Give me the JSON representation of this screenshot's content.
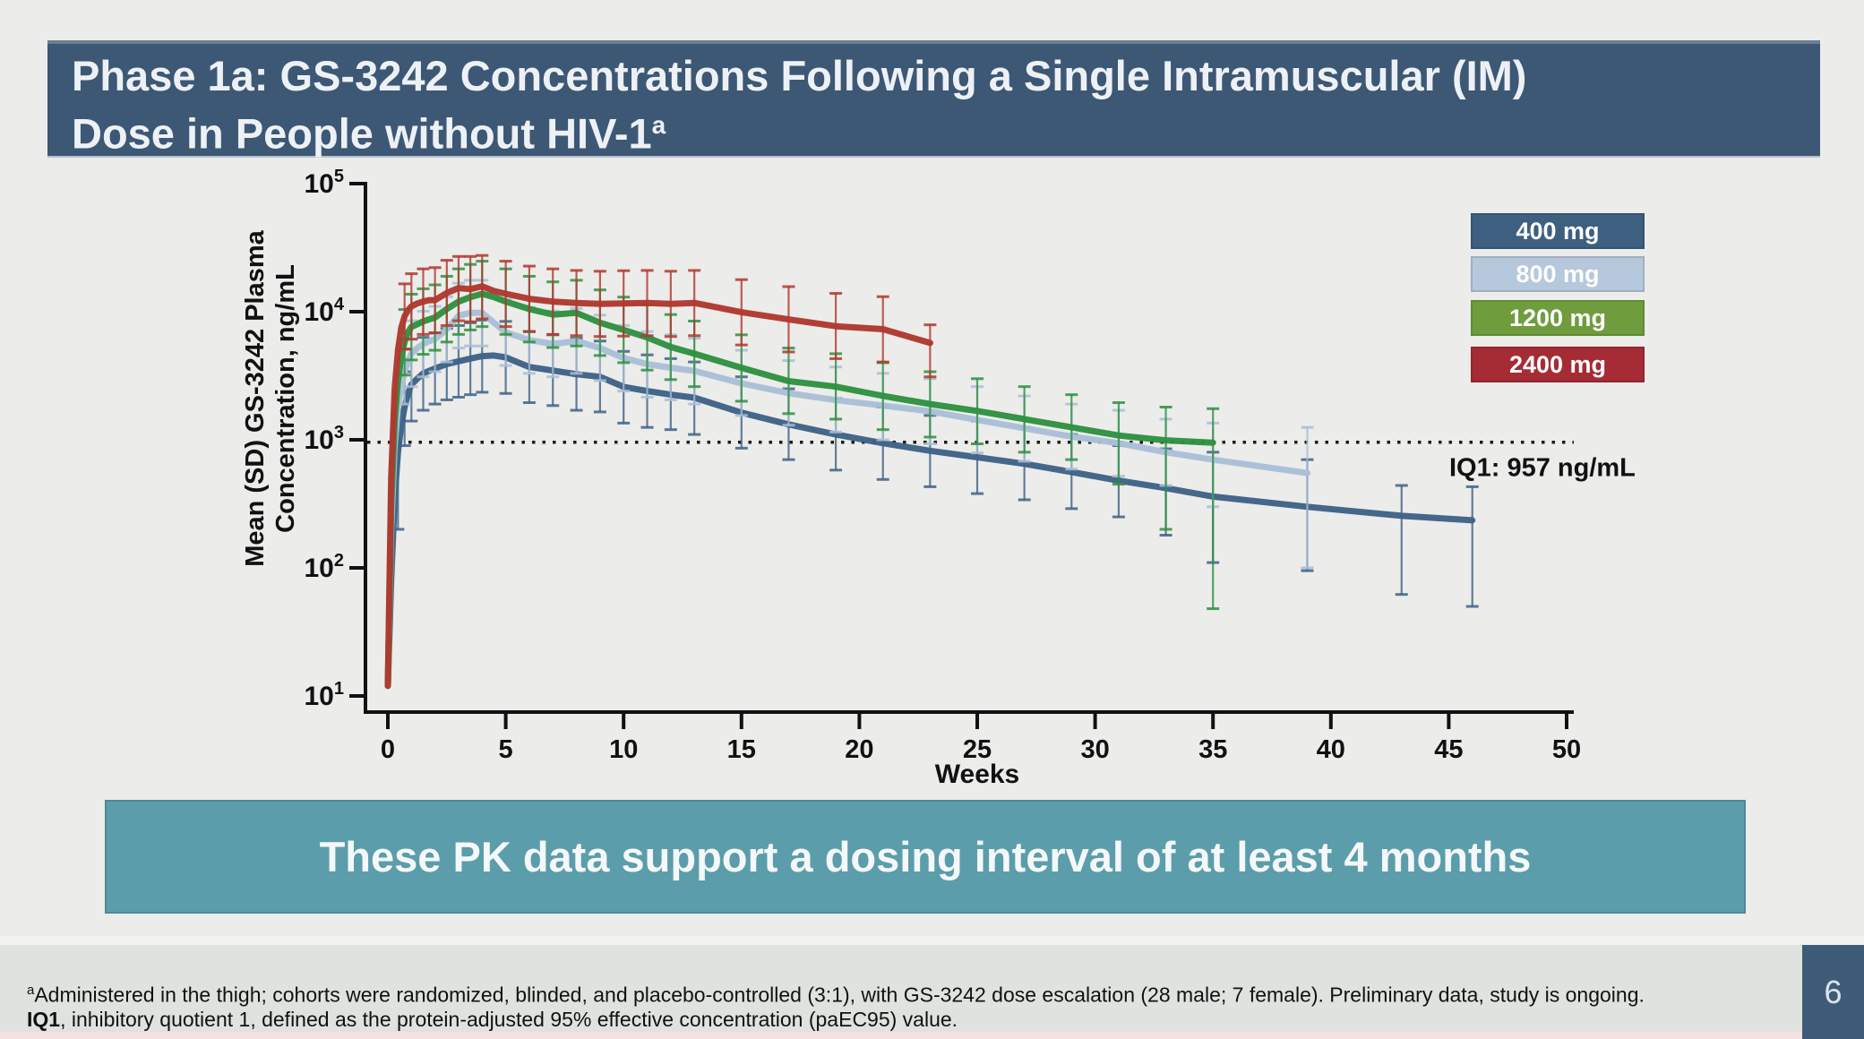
{
  "slide": {
    "title_line1": "Phase 1a: GS-3242 Concentrations Following a Single Intramuscular (IM)",
    "title_line2": "Dose in People without HIV-1",
    "title_superscript": "a",
    "banner_text": "These PK data support a dosing interval of at least 4 months",
    "page_number": "6",
    "footnote_sup": "a",
    "footnote_line1": "Administered in the thigh; cohorts were randomized, blinded, and placebo-controlled (3:1), with GS-3242 dose escalation (28 male; 7 female). Preliminary data, study is ongoing.",
    "footnote_line2_bold": "IQ1",
    "footnote_line2_rest": ", inhibitory quotient 1, defined as the protein-adjusted 95% effective concentration (paEC95) value."
  },
  "colors": {
    "slide_bg": "#ececea",
    "title_bar_bg": "#3d5875",
    "banner_bg": "#5b9dab",
    "footer_bg": "#dfe3df",
    "bottom_strip": "#f5e1e1",
    "page_box_bg": "#3e5c7a",
    "axis": "#111111"
  },
  "chart_data": {
    "type": "line",
    "x_axis_title": "Weeks",
    "y_axis_title_lines": [
      "Mean (SD) GS-3242 Plasma",
      "Concentration, ng/mL"
    ],
    "x_ticks": [
      0,
      5,
      10,
      15,
      20,
      25,
      30,
      35,
      40,
      45,
      50
    ],
    "y_tick_exponents": [
      5,
      4,
      3,
      2,
      1
    ],
    "xlim": [
      0,
      50
    ],
    "ylog_range": [
      1,
      5
    ],
    "grid": false,
    "legend_position": "upper-right",
    "reference_line": {
      "value": 957,
      "label": "IQ1: 957 ng/mL"
    },
    "series": [
      {
        "name": "400 mg",
        "line_color": "#3f6286",
        "legend_color": "#3d5f80",
        "points": [
          [
            0,
            12
          ],
          [
            0.14,
            80
          ],
          [
            0.29,
            350
          ],
          [
            0.43,
            800
          ],
          [
            0.57,
            1300
          ],
          [
            0.71,
            1800
          ],
          [
            0.86,
            2300
          ],
          [
            1,
            2700
          ],
          [
            1.25,
            3000
          ],
          [
            1.5,
            3300
          ],
          [
            1.75,
            3450
          ],
          [
            2,
            3600
          ],
          [
            2.5,
            3900
          ],
          [
            3,
            4100
          ],
          [
            3.5,
            4300
          ],
          [
            4,
            4500
          ],
          [
            4.5,
            4550
          ],
          [
            5,
            4400
          ],
          [
            6,
            3700
          ],
          [
            7,
            3470
          ],
          [
            8,
            3250
          ],
          [
            9,
            3100
          ],
          [
            10,
            2590
          ],
          [
            11,
            2400
          ],
          [
            12,
            2250
          ],
          [
            13,
            2130
          ],
          [
            15,
            1630
          ],
          [
            17,
            1320
          ],
          [
            19,
            1100
          ],
          [
            21,
            940
          ],
          [
            23,
            820
          ],
          [
            25,
            730
          ],
          [
            27,
            650
          ],
          [
            29,
            560
          ],
          [
            31,
            480
          ],
          [
            33,
            420
          ],
          [
            35,
            360
          ],
          [
            39,
            300
          ],
          [
            43,
            255
          ],
          [
            46,
            235
          ]
        ],
        "err": [
          [
            0.43,
            200,
            1700
          ],
          [
            0.71,
            900,
            3400
          ],
          [
            1,
            1400,
            5100
          ],
          [
            1.5,
            1700,
            6300
          ],
          [
            2,
            1900,
            6800
          ],
          [
            2.5,
            2050,
            7400
          ],
          [
            3,
            2150,
            7800
          ],
          [
            3.5,
            2250,
            8200
          ],
          [
            4,
            2350,
            8600
          ],
          [
            5,
            2300,
            8400
          ],
          [
            6,
            1950,
            7000
          ],
          [
            7,
            1850,
            6600
          ],
          [
            8,
            1700,
            6200
          ],
          [
            9,
            1650,
            5900
          ],
          [
            10,
            1350,
            4900
          ],
          [
            11,
            1250,
            4600
          ],
          [
            12,
            1200,
            4300
          ],
          [
            13,
            1100,
            4050
          ],
          [
            15,
            860,
            3100
          ],
          [
            17,
            700,
            2500
          ],
          [
            19,
            580,
            2100
          ],
          [
            21,
            490,
            1800
          ],
          [
            23,
            430,
            1550
          ],
          [
            25,
            380,
            1400
          ],
          [
            27,
            340,
            1250
          ],
          [
            29,
            290,
            1100
          ],
          [
            31,
            250,
            900
          ],
          [
            33,
            180,
            850
          ],
          [
            35,
            110,
            800
          ],
          [
            39,
            95,
            700
          ],
          [
            43,
            62,
            440
          ],
          [
            46,
            50,
            430
          ]
        ]
      },
      {
        "name": "800 mg",
        "line_color": "#a9bfd7",
        "legend_color": "#b6c8db",
        "points": [
          [
            0,
            12
          ],
          [
            0.14,
            200
          ],
          [
            0.29,
            900
          ],
          [
            0.43,
            1800
          ],
          [
            0.57,
            2600
          ],
          [
            0.71,
            3400
          ],
          [
            0.86,
            4100
          ],
          [
            1,
            4700
          ],
          [
            1.25,
            5200
          ],
          [
            1.5,
            5600
          ],
          [
            1.75,
            5900
          ],
          [
            2,
            6100
          ],
          [
            2.5,
            7300
          ],
          [
            3,
            9300
          ],
          [
            3.5,
            9800
          ],
          [
            4,
            9800
          ],
          [
            4.5,
            8200
          ],
          [
            5,
            6900
          ],
          [
            6,
            6000
          ],
          [
            7,
            5600
          ],
          [
            8,
            5900
          ],
          [
            9,
            5200
          ],
          [
            10,
            4350
          ],
          [
            11,
            3900
          ],
          [
            12,
            3650
          ],
          [
            13,
            3450
          ],
          [
            15,
            2760
          ],
          [
            17,
            2310
          ],
          [
            19,
            2040
          ],
          [
            21,
            1850
          ],
          [
            23,
            1670
          ],
          [
            25,
            1430
          ],
          [
            27,
            1230
          ],
          [
            29,
            1060
          ],
          [
            31,
            940
          ],
          [
            33,
            800
          ],
          [
            35,
            700
          ],
          [
            39,
            550
          ]
        ],
        "err": [
          [
            0.71,
            1900,
            6100
          ],
          [
            1,
            2600,
            8500
          ],
          [
            1.5,
            3100,
            10100
          ],
          [
            2,
            3400,
            11000
          ],
          [
            2.5,
            4050,
            13100
          ],
          [
            3,
            5200,
            16700
          ],
          [
            3.5,
            5400,
            17600
          ],
          [
            4,
            5400,
            17600
          ],
          [
            5,
            3800,
            12400
          ],
          [
            6,
            3300,
            10800
          ],
          [
            7,
            3100,
            10100
          ],
          [
            8,
            3300,
            10600
          ],
          [
            9,
            2900,
            9400
          ],
          [
            10,
            2400,
            7800
          ],
          [
            11,
            2150,
            7000
          ],
          [
            12,
            2050,
            6600
          ],
          [
            13,
            1900,
            6200
          ],
          [
            15,
            1550,
            5000
          ],
          [
            17,
            1300,
            4150
          ],
          [
            19,
            1150,
            3700
          ],
          [
            21,
            1000,
            3300
          ],
          [
            23,
            930,
            3000
          ],
          [
            25,
            790,
            2600
          ],
          [
            27,
            680,
            2200
          ],
          [
            29,
            590,
            1900
          ],
          [
            31,
            520,
            1700
          ],
          [
            33,
            440,
            1450
          ],
          [
            35,
            300,
            1350
          ],
          [
            39,
            100,
            1250
          ]
        ]
      },
      {
        "name": "1200 mg",
        "line_color": "#2e9140",
        "legend_color": "#6f9c3d",
        "points": [
          [
            0,
            12
          ],
          [
            0.14,
            300
          ],
          [
            0.29,
            1400
          ],
          [
            0.43,
            2900
          ],
          [
            0.57,
            4500
          ],
          [
            0.71,
            5800
          ],
          [
            0.86,
            6900
          ],
          [
            1,
            7600
          ],
          [
            1.25,
            8000
          ],
          [
            1.5,
            8400
          ],
          [
            1.75,
            8700
          ],
          [
            2,
            9000
          ],
          [
            2.5,
            10500
          ],
          [
            3,
            12000
          ],
          [
            3.5,
            13000
          ],
          [
            4,
            13800
          ],
          [
            4.5,
            13000
          ],
          [
            5,
            12000
          ],
          [
            6,
            10500
          ],
          [
            7,
            9500
          ],
          [
            8,
            9800
          ],
          [
            9,
            8200
          ],
          [
            10,
            7200
          ],
          [
            11,
            6300
          ],
          [
            12,
            5300
          ],
          [
            13,
            4700
          ],
          [
            15,
            3650
          ],
          [
            17,
            2870
          ],
          [
            19,
            2600
          ],
          [
            21,
            2200
          ],
          [
            23,
            1900
          ],
          [
            25,
            1680
          ],
          [
            27,
            1450
          ],
          [
            29,
            1250
          ],
          [
            31,
            1080
          ],
          [
            33,
            990
          ],
          [
            35,
            950
          ]
        ],
        "err": [
          [
            0.71,
            3200,
            10400
          ],
          [
            1,
            4200,
            13700
          ],
          [
            1.5,
            4650,
            15100
          ],
          [
            2,
            5000,
            16200
          ],
          [
            2.5,
            5800,
            18900
          ],
          [
            3,
            6650,
            21600
          ],
          [
            3.5,
            7200,
            23400
          ],
          [
            4,
            7650,
            24800
          ],
          [
            5,
            6650,
            21600
          ],
          [
            6,
            5800,
            18900
          ],
          [
            7,
            5250,
            17100
          ],
          [
            8,
            5400,
            17600
          ],
          [
            9,
            4550,
            14800
          ],
          [
            10,
            4000,
            13000
          ],
          [
            11,
            3500,
            11300
          ],
          [
            12,
            2950,
            9500
          ],
          [
            13,
            2600,
            8450
          ],
          [
            15,
            2000,
            6600
          ],
          [
            17,
            1600,
            5200
          ],
          [
            19,
            1450,
            4700
          ],
          [
            21,
            1200,
            4000
          ],
          [
            23,
            1050,
            3400
          ],
          [
            25,
            930,
            3000
          ],
          [
            27,
            800,
            2600
          ],
          [
            29,
            700,
            2250
          ],
          [
            31,
            450,
            1950
          ],
          [
            33,
            200,
            1800
          ],
          [
            35,
            48,
            1750
          ]
        ]
      },
      {
        "name": "2400 mg",
        "line_color": "#b0392f",
        "legend_color": "#a52b35",
        "points": [
          [
            0,
            12
          ],
          [
            0.14,
            500
          ],
          [
            0.29,
            2500
          ],
          [
            0.43,
            5000
          ],
          [
            0.57,
            7500
          ],
          [
            0.71,
            9200
          ],
          [
            0.86,
            10300
          ],
          [
            1,
            11000
          ],
          [
            1.25,
            11600
          ],
          [
            1.5,
            12000
          ],
          [
            1.75,
            12300
          ],
          [
            2,
            12300
          ],
          [
            2.5,
            14000
          ],
          [
            3,
            15300
          ],
          [
            3.5,
            15000
          ],
          [
            4,
            15800
          ],
          [
            4.5,
            14500
          ],
          [
            5,
            13800
          ],
          [
            6,
            12600
          ],
          [
            7,
            12000
          ],
          [
            8,
            11700
          ],
          [
            9,
            11500
          ],
          [
            10,
            11600
          ],
          [
            11,
            11700
          ],
          [
            12,
            11500
          ],
          [
            13,
            11700
          ],
          [
            15,
            9900
          ],
          [
            17,
            8700
          ],
          [
            19,
            7700
          ],
          [
            21,
            7300
          ],
          [
            23,
            5700
          ]
        ],
        "err": [
          [
            0.71,
            5100,
            16500
          ],
          [
            1,
            6100,
            19800
          ],
          [
            1.5,
            6650,
            21600
          ],
          [
            2,
            6850,
            22100
          ],
          [
            2.5,
            7800,
            25200
          ],
          [
            3,
            8500,
            27000
          ],
          [
            3.5,
            8350,
            27000
          ],
          [
            4,
            8800,
            27500
          ],
          [
            5,
            7650,
            24800
          ],
          [
            6,
            7000,
            22700
          ],
          [
            7,
            6650,
            21600
          ],
          [
            8,
            6500,
            21000
          ],
          [
            9,
            6400,
            20700
          ],
          [
            10,
            6450,
            20900
          ],
          [
            11,
            6500,
            21000
          ],
          [
            12,
            6400,
            20700
          ],
          [
            13,
            6500,
            21000
          ],
          [
            15,
            5500,
            17800
          ],
          [
            17,
            4850,
            15700
          ],
          [
            19,
            4300,
            13900
          ],
          [
            21,
            4050,
            13100
          ],
          [
            23,
            3100,
            7900
          ]
        ]
      }
    ]
  }
}
